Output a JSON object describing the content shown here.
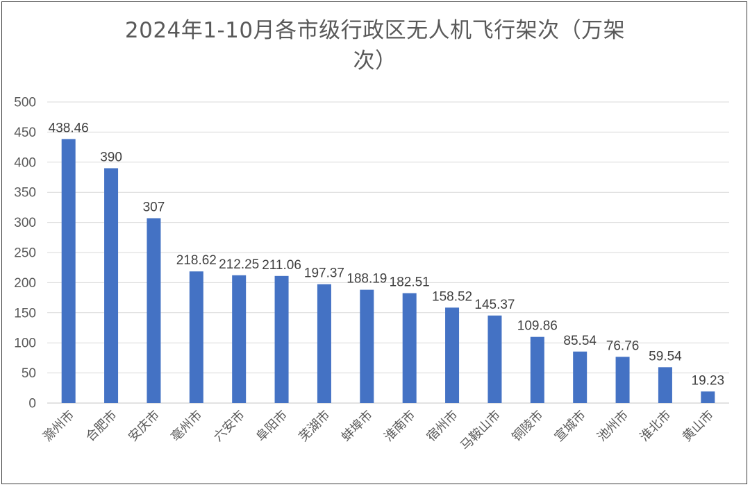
{
  "chart_data": {
    "type": "bar",
    "title_line1": "2024年1-10月各市级行政区无人机飞行架次（万架",
    "title_line2": "次）",
    "categories": [
      "滁州市",
      "合肥市",
      "安庆市",
      "亳州市",
      "六安市",
      "阜阳市",
      "芜湖市",
      "蚌埠市",
      "淮南市",
      "宿州市",
      "马鞍山市",
      "铜陵市",
      "宣城市",
      "池州市",
      "淮北市",
      "黄山市"
    ],
    "values": [
      438.46,
      390,
      307,
      218.62,
      212.25,
      211.06,
      197.37,
      188.19,
      182.51,
      158.52,
      145.37,
      109.86,
      85.54,
      76.76,
      59.54,
      19.23
    ],
    "value_labels": [
      "438.46",
      "390",
      "307",
      "218.62",
      "212.25",
      "211.06",
      "197.37",
      "188.19",
      "182.51",
      "158.52",
      "145.37",
      "109.86",
      "85.54",
      "76.76",
      "59.54",
      "19.23"
    ],
    "ylim": [
      0,
      500
    ],
    "yticks": [
      "0",
      "50",
      "100",
      "150",
      "200",
      "250",
      "300",
      "350",
      "400",
      "450",
      "500"
    ],
    "grid": true,
    "bar_color": "#4472C4",
    "grid_color": "#d9d9d9"
  }
}
